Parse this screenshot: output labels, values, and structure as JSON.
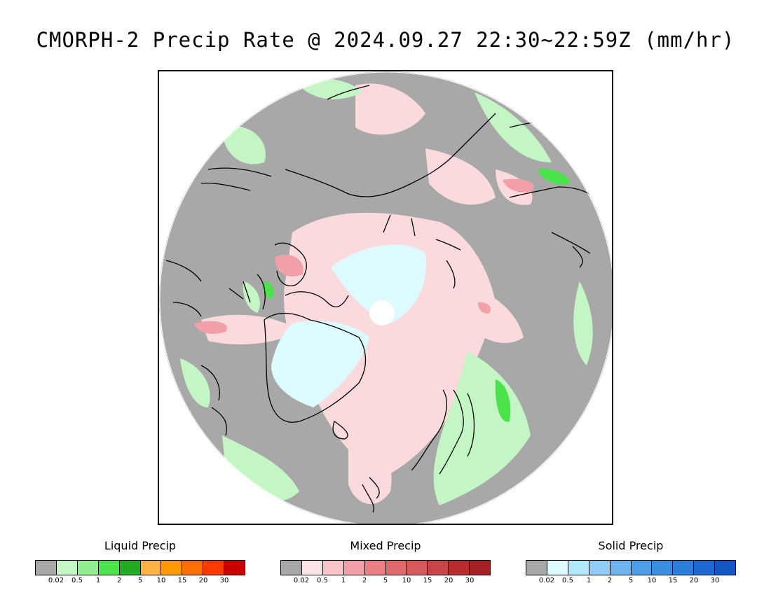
{
  "title": "CMORPH-2 Precip Rate @ 2024.09.27 22:30~22:59Z (mm/hr)",
  "map": {
    "projection": "north-polar-stereographic",
    "background_color": "#a8a8a8",
    "coastline_color": "#000000"
  },
  "legends": [
    {
      "title": "Liquid Precip",
      "colors": [
        "#a8a8a8",
        "#c4f5c4",
        "#90ee90",
        "#4ce24c",
        "#22aa22",
        "#ffb347",
        "#ff9a00",
        "#ff7000",
        "#ff3a00",
        "#cc0000"
      ],
      "ticks": [
        "0.02",
        "0.5",
        "1",
        "2",
        "5",
        "10",
        "15",
        "20",
        "30"
      ]
    },
    {
      "title": "Mixed Precip",
      "colors": [
        "#a8a8a8",
        "#fde4e6",
        "#f8c4c8",
        "#f0a0a6",
        "#e88086",
        "#de6a6e",
        "#d45a5e",
        "#c84448",
        "#b82c30",
        "#a42024"
      ],
      "ticks": [
        "0.02",
        "0.5",
        "1",
        "2",
        "5",
        "10",
        "15",
        "20",
        "30"
      ]
    },
    {
      "title": "Solid Precip",
      "colors": [
        "#a8a8a8",
        "#dcfaff",
        "#b0eafc",
        "#90ccf6",
        "#6eb4ee",
        "#4c9ee6",
        "#3a8ee0",
        "#2a7ed8",
        "#1c6ad0",
        "#1456c4"
      ],
      "ticks": [
        "0.02",
        "0.5",
        "1",
        "2",
        "5",
        "10",
        "15",
        "20",
        "30"
      ]
    }
  ]
}
